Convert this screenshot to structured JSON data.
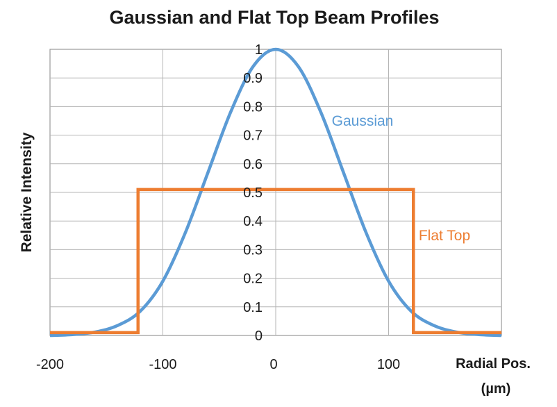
{
  "chart_data": {
    "type": "line",
    "title": "Gaussian and Flat Top Beam Profiles",
    "ylabel": "Relative Intensity",
    "xlabel": "Radial Pos.",
    "xlabel_unit": "(µm)",
    "xlim": [
      -200,
      200
    ],
    "ylim": [
      0,
      1
    ],
    "x_ticks": [
      "-200",
      "-100",
      "0",
      "100"
    ],
    "y_ticks": [
      "0",
      "0.1",
      "0.2",
      "0.3",
      "0.4",
      "0.5",
      "0.6",
      "0.7",
      "0.8",
      "0.9",
      "1"
    ],
    "grid": true,
    "series": [
      {
        "name": "Gaussian",
        "color": "#5b9bd5",
        "x": [
          -200,
          -180,
          -160,
          -140,
          -120,
          -100,
          -80,
          -60,
          -40,
          -20,
          0,
          20,
          40,
          60,
          80,
          100,
          120,
          140,
          160,
          180,
          200
        ],
        "y": [
          0.0,
          0.003,
          0.012,
          0.035,
          0.085,
          0.19,
          0.36,
          0.57,
          0.78,
          0.94,
          1.0,
          0.94,
          0.78,
          0.57,
          0.36,
          0.19,
          0.085,
          0.035,
          0.012,
          0.003,
          0.0
        ]
      },
      {
        "name": "Flat Top",
        "color": "#ed7d31",
        "x": [
          -200,
          -122,
          -122,
          122,
          122,
          200
        ],
        "y": [
          0.01,
          0.01,
          0.51,
          0.51,
          0.01,
          0.01
        ]
      }
    ]
  }
}
